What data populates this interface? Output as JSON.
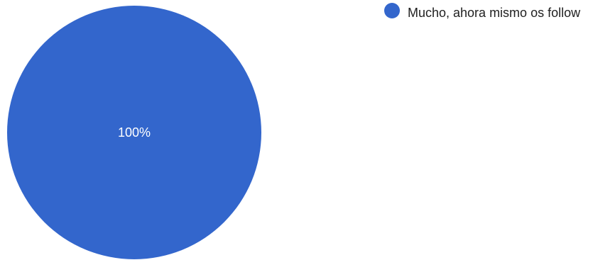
{
  "chart_data": {
    "type": "pie",
    "slices": [
      {
        "label": "Mucho, ahora mismo os follow",
        "value": 100,
        "percent_label": "100%",
        "color": "#3366cc"
      }
    ],
    "legend_position": "top-right"
  }
}
